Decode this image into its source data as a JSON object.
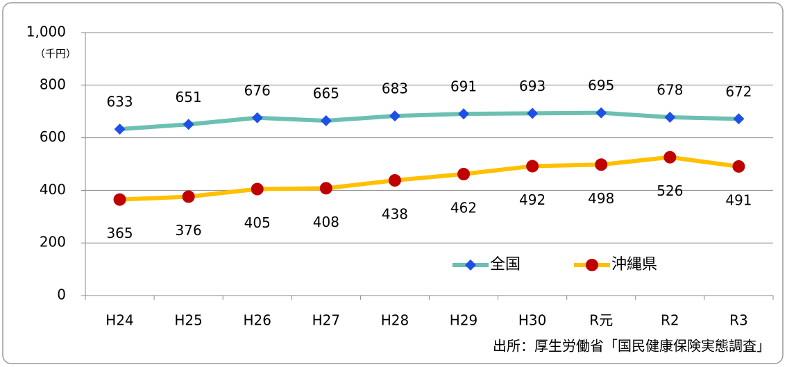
{
  "chart_data": {
    "type": "line",
    "y_unit": "（千円）",
    "source": "出所：厚生労働省「国民健康保険実態調査」",
    "categories": [
      "H24",
      "H25",
      "H26",
      "H27",
      "H28",
      "H29",
      "H30",
      "R元",
      "R2",
      "R3"
    ],
    "series": [
      {
        "name": "全国",
        "color": "#6cc0b2",
        "marker_color": "#1f50e6",
        "marker": "diamond",
        "label_position": "above",
        "values": [
          633,
          651,
          676,
          665,
          683,
          691,
          693,
          695,
          678,
          672
        ]
      },
      {
        "name": "沖縄県",
        "color": "#ffc000",
        "marker_color": "#c00000",
        "marker": "circle",
        "label_position": "below",
        "values": [
          365,
          376,
          405,
          408,
          438,
          462,
          492,
          498,
          526,
          491
        ]
      }
    ],
    "ylim": [
      0,
      1000
    ],
    "yticks": [
      0,
      200,
      400,
      600,
      800,
      {
        "value": 1000,
        "label": "1,000"
      }
    ],
    "grid": true,
    "legend": "lower right"
  }
}
